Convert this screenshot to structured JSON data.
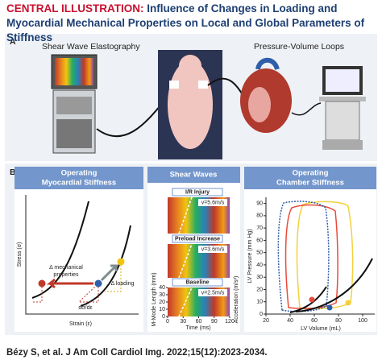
{
  "header": {
    "label": "CENTRAL ILLUSTRATION:",
    "title": "Influence of Changes in Loading and Myocardial Mechanical Properties on Local and Global Parameters of Stiffness"
  },
  "panel_a": {
    "label": "A",
    "left_title": "Shear Wave Elastography",
    "right_title": "Pressure-Volume Loops"
  },
  "panel_b": {
    "label": "B",
    "left": {
      "title_lines": [
        "Operating",
        "Myocardial Stiffness"
      ],
      "y_label": "Stress (σ)",
      "x_label": "Strain (ε)",
      "annotations": [
        "Δ mechanical",
        "properties",
        "Δ loading",
        "dσ/dε"
      ]
    },
    "middle": {
      "title": "Shear Waves",
      "states": [
        "I/R Injury",
        "Preload Increase",
        "Baseline"
      ],
      "velocities": [
        "v=5.6m/s",
        "v=3.6m/s",
        "v=2.5m/s"
      ],
      "y_label": "M-Mode Length (mm)",
      "x_label": "Time (ms)",
      "y2_label": "Acceleration (m/s²)",
      "xlim": [
        0,
        120
      ],
      "xticks": [
        0,
        30,
        60,
        90,
        120
      ],
      "ylim": [
        0,
        40
      ],
      "yticks": [
        0,
        10,
        20,
        30,
        40
      ]
    },
    "right": {
      "title_lines": [
        "Operating",
        "Chamber Stiffness"
      ],
      "y_label": "LV Pressure (mm Hg)",
      "x_label": "LV Volume (mL)",
      "xlim": [
        20,
        110
      ],
      "xticks": [
        20,
        40,
        60,
        80,
        100
      ],
      "ylim": [
        0,
        95
      ],
      "yticks": [
        0,
        10,
        20,
        30,
        40,
        50,
        60,
        70,
        80,
        90
      ]
    }
  },
  "footer": {
    "citation": "Bézy S, et al. J Am Coll Cardiol Img. 2022;15(12):2023-2034."
  }
}
